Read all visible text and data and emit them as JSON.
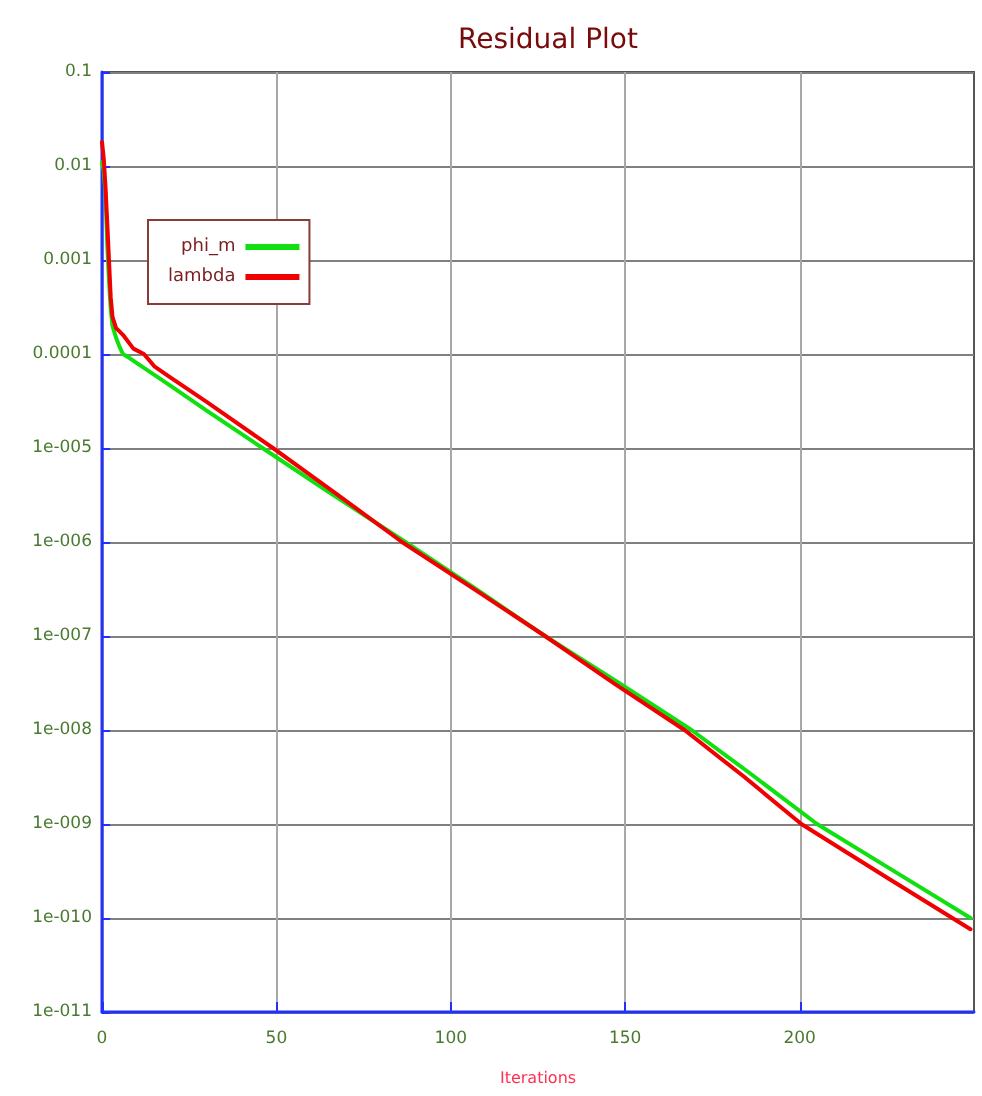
{
  "chart_data": {
    "type": "line",
    "title": "Residual Plot",
    "xlabel": "Iterations",
    "log": "y",
    "grid": true,
    "legend": "top left",
    "marker": "none",
    "line_style": "solid",
    "xlim": [
      0,
      250
    ],
    "xticks": [
      0,
      50,
      100,
      150,
      200
    ],
    "ylim": [
      1e-11,
      0.1
    ],
    "yticks": [
      {
        "value": 1e-11,
        "label": "1e-011"
      },
      {
        "value": 1e-10,
        "label": "1e-010"
      },
      {
        "value": 1e-09,
        "label": "1e-009"
      },
      {
        "value": 1e-08,
        "label": "1e-008"
      },
      {
        "value": 1e-07,
        "label": "1e-007"
      },
      {
        "value": 1e-06,
        "label": "1e-006"
      },
      {
        "value": 1e-05,
        "label": "1e-005"
      },
      0.0001,
      0.001,
      0.01,
      0.1
    ],
    "series": [
      {
        "name": "phi_m",
        "color": "#10e010",
        "x": [
          0,
          0.5,
          1,
          1.5,
          2,
          2.5,
          3,
          4,
          5,
          6,
          8,
          10,
          15,
          20,
          30,
          46,
          65,
          87,
          107,
          127,
          148,
          169,
          187,
          205,
          228,
          249
        ],
        "values": [
          0.011,
          0.009,
          0.005,
          0.0015,
          0.0006,
          0.0003,
          0.0002,
          0.00015,
          0.00012,
          0.0001,
          9e-05,
          8e-05,
          6e-05,
          4.5e-05,
          2.5e-05,
          1e-05,
          3.4e-06,
          1e-06,
          3.2e-07,
          1e-07,
          3.2e-08,
          1e-08,
          3.2e-09,
          1e-09,
          3e-10,
          1e-10
        ]
      },
      {
        "name": "lambda",
        "color": "#f00000",
        "x": [
          0,
          0.5,
          1,
          1.5,
          2,
          2.5,
          3,
          4,
          6,
          9,
          12,
          15,
          20,
          30,
          49,
          67,
          86,
          107,
          127,
          147,
          167,
          184,
          200.5,
          225,
          249
        ],
        "values": [
          0.018,
          0.012,
          0.006,
          0.0025,
          0.001,
          0.0004,
          0.00025,
          0.00019,
          0.00016,
          0.000114,
          0.0001,
          7.4e-05,
          5.5e-05,
          3.1e-05,
          1e-05,
          3.3e-06,
          1e-06,
          3.1e-07,
          1e-07,
          3.1e-08,
          1e-08,
          3.2e-09,
          1e-09,
          2.7e-10,
          7.6e-11
        ]
      }
    ]
  }
}
